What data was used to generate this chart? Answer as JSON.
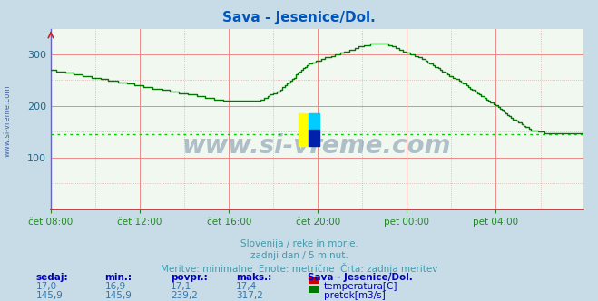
{
  "title": "Sava - Jesenice/Dol.",
  "title_color": "#0055bb",
  "bg_color": "#c8dce8",
  "plot_bg_color": "#f0f8f0",
  "grid_major_color": "#ee8888",
  "grid_minor_color": "#ddaaaa",
  "axis_color": "#8888cc",
  "x_label_color": "#228822",
  "y_label_color": "#226688",
  "temp_color": "#cc0000",
  "flow_color": "#007700",
  "avg_line_color": "#00cc00",
  "avg_flow": 145.9,
  "y_min": 0,
  "y_max": 350,
  "y_ticks": [
    100,
    200,
    300
  ],
  "x_ticks_labels": [
    "čet 08:00",
    "čet 12:00",
    "čet 16:00",
    "čet 20:00",
    "pet 00:00",
    "pet 04:00"
  ],
  "footer_text1": "Slovenija / reke in morje.",
  "footer_text2": "zadnji dan / 5 minut.",
  "footer_text3": "Meritve: minimalne  Enote: metrične  Črta: zadnja meritev",
  "footer_color": "#4499aa",
  "table_header": [
    "sedaj:",
    "min.:",
    "povpr.:",
    "maks.:",
    "Sava - Jesenice/Dol."
  ],
  "table_header_color": "#0000bb",
  "table_row1": [
    "17,0",
    "16,9",
    "17,1",
    "17,4"
  ],
  "table_row2": [
    "145,9",
    "145,9",
    "239,2",
    "317,2"
  ],
  "table_value_color": "#3377aa",
  "watermark_text": "www.si-vreme.com",
  "watermark_color": "#1a3a6a",
  "num_points": 288
}
